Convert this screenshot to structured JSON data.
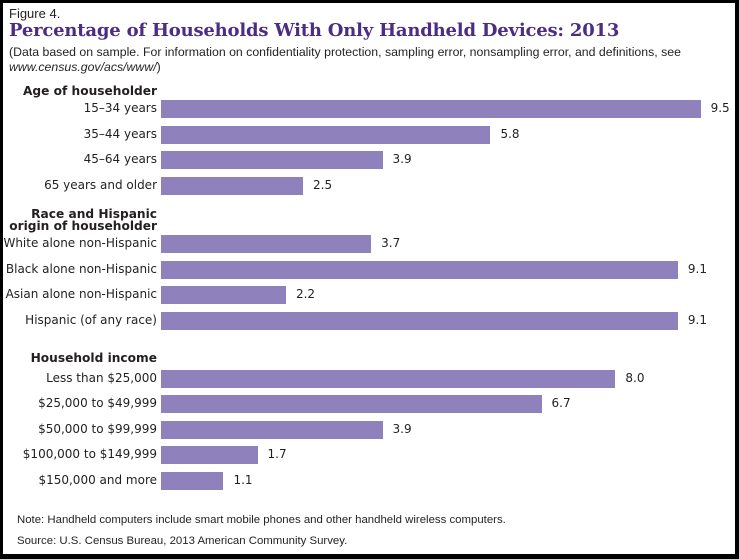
{
  "figure_label": "Figure 4.",
  "title": "Percentage of Households With Only Handheld Devices: 2013",
  "subtitle_text": "(Data based on sample. For information on confidentiality protection, sampling error, nonsampling error, and definitions, see ",
  "subtitle_url": "www.census.gov/acs/www/",
  "subtitle_close": ")",
  "note": "Note: Handheld computers include smart mobile phones and other handheld wireless computers.",
  "source": "Source: U.S. Census Bureau, 2013 American Community Survey.",
  "colors": {
    "bar": "#8f82bc",
    "title": "#4b2d83"
  },
  "chart_data": {
    "type": "bar",
    "orientation": "horizontal",
    "title": "Percentage of Households With Only Handheld Devices: 2013",
    "xlabel": "",
    "ylabel": "",
    "xlim": [
      0,
      9.5
    ],
    "grid": false,
    "groups": [
      {
        "name": "Age of householder",
        "categories": [
          "15–34 years",
          "35–44 years",
          "45–64 years",
          "65 years and older"
        ],
        "values": [
          9.5,
          5.8,
          3.9,
          2.5
        ],
        "labels": [
          "9.5",
          "5.8",
          "3.9",
          "2.5"
        ]
      },
      {
        "name": "Race and Hispanic origin of householder",
        "name_lines": [
          "Race and Hispanic",
          "origin of householder"
        ],
        "categories": [
          "White alone non-Hispanic",
          "Black alone non-Hispanic",
          "Asian alone non-Hispanic",
          "Hispanic (of any race)"
        ],
        "values": [
          3.7,
          9.1,
          2.2,
          9.1
        ],
        "labels": [
          "3.7",
          "9.1",
          "2.2",
          "9.1"
        ]
      },
      {
        "name": "Household income",
        "categories": [
          "Less than $25,000",
          "$25,000 to $49,999",
          "$50,000 to $99,999",
          "$100,000 to $149,999",
          "$150,000 and more"
        ],
        "values": [
          8.0,
          6.7,
          3.9,
          1.7,
          1.1
        ],
        "labels": [
          "8.0",
          "6.7",
          "3.9",
          "1.7",
          "1.1"
        ]
      }
    ]
  }
}
